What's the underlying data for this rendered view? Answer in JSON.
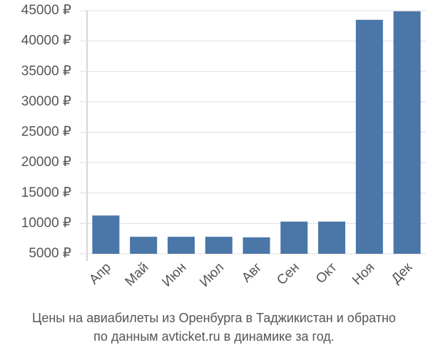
{
  "chart_data": {
    "type": "bar",
    "title": "Цены на авиабилеты из Оренбурга в Таджикистан и обратно",
    "subtitle": "по данным avticket.ru в динамике за год.",
    "categories": [
      "Апр",
      "Май",
      "Июн",
      "Июл",
      "Авг",
      "Сен",
      "Окт",
      "Ноя",
      "Дек"
    ],
    "values": [
      11300,
      7800,
      7800,
      7800,
      7700,
      10300,
      10300,
      43500,
      44900
    ],
    "color": "#4a76a8",
    "ylim": [
      5000,
      45000
    ],
    "yticks": [
      {
        "value": 5000,
        "label": "5000 ₽"
      },
      {
        "value": 10000,
        "label": "10000 ₽"
      },
      {
        "value": 15000,
        "label": "15000 ₽"
      },
      {
        "value": 20000,
        "label": "20000 ₽"
      },
      {
        "value": 25000,
        "label": "25000 ₽"
      },
      {
        "value": 30000,
        "label": "30000 ₽"
      },
      {
        "value": 35000,
        "label": "35000 ₽"
      },
      {
        "value": 40000,
        "label": "40000 ₽"
      },
      {
        "value": 45000,
        "label": "45000 ₽"
      }
    ],
    "grid": true
  }
}
